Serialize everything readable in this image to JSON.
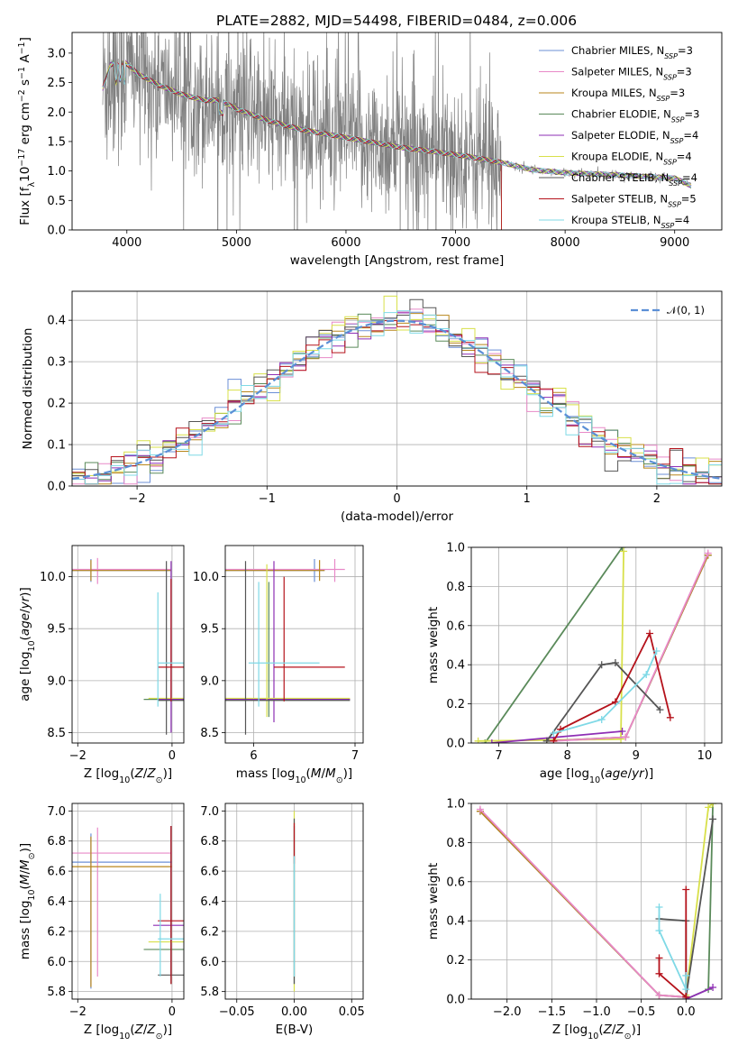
{
  "title": "PLATE=2882, MJD=54498, FIBERID=0484, z=0.006",
  "colors": {
    "Chabrier MILES": "#6b8fd6",
    "Salpeter MILES": "#e889c8",
    "Kroupa MILES": "#b8861b",
    "Chabrier ELODIE": "#5a8a5a",
    "Salpeter ELODIE": "#8e2fb5",
    "Kroupa ELODIE": "#d8e04a",
    "Chabrier STELIB": "#555555",
    "Salpeter STELIB": "#b5121b",
    "Kroupa STELIB": "#7fd9e6",
    "data": "#808080",
    "gauss": "#5b8fd6"
  },
  "chart_data": [
    {
      "id": "spectrum",
      "type": "line",
      "title": "PLATE=2882, MJD=54498, FIBERID=0484, z=0.006",
      "xlabel": "wavelength [Angstrom, rest frame]",
      "ylabel": "Flux [f_λ 10^-17 erg cm^-2 s^-1 A^-1]",
      "xlim": [
        3500,
        9430
      ],
      "ylim": [
        0,
        3.35
      ],
      "xticks": [
        4000,
        5000,
        6000,
        7000,
        8000,
        9000
      ],
      "yticks": [
        0.0,
        0.5,
        1.0,
        1.5,
        2.0,
        2.5,
        3.0
      ],
      "legend_position": "top-right",
      "legend": [
        {
          "label": "Chabrier MILES, N",
          "sub": "SSP",
          "tail": "=3"
        },
        {
          "label": "Salpeter MILES, N",
          "sub": "SSP",
          "tail": "=3"
        },
        {
          "label": "Kroupa MILES, N",
          "sub": "SSP",
          "tail": "=3"
        },
        {
          "label": "Chabrier ELODIE, N",
          "sub": "SSP",
          "tail": "=3"
        },
        {
          "label": "Salpeter ELODIE, N",
          "sub": "SSP",
          "tail": "=4"
        },
        {
          "label": "Kroupa ELODIE, N",
          "sub": "SSP",
          "tail": "=4"
        },
        {
          "label": "Chabrier STELIB, N",
          "sub": "SSP",
          "tail": "=4"
        },
        {
          "label": "Salpeter STELIB, N",
          "sub": "SSP",
          "tail": "=5"
        },
        {
          "label": "Kroupa STELIB, N",
          "sub": "SSP",
          "tail": "=4"
        }
      ],
      "continuum": [
        [
          3780,
          2.4
        ],
        [
          3850,
          2.8
        ],
        [
          3950,
          2.9
        ],
        [
          4100,
          2.65
        ],
        [
          4300,
          2.45
        ],
        [
          4500,
          2.3
        ],
        [
          4700,
          2.2
        ],
        [
          4850,
          2.2
        ],
        [
          5000,
          2.05
        ],
        [
          5300,
          1.85
        ],
        [
          5600,
          1.7
        ],
        [
          5900,
          1.6
        ],
        [
          6200,
          1.5
        ],
        [
          6500,
          1.4
        ],
        [
          6800,
          1.33
        ],
        [
          7100,
          1.25
        ],
        [
          7400,
          1.15
        ],
        [
          7700,
          1.02
        ],
        [
          8000,
          0.97
        ],
        [
          8500,
          0.93
        ],
        [
          9000,
          0.88
        ],
        [
          9150,
          0.75
        ]
      ]
    },
    {
      "id": "residuals",
      "type": "step",
      "xlabel": "(data-model)/error",
      "ylabel": "Normed distribution",
      "xlim": [
        -2.5,
        2.5
      ],
      "ylim": [
        0,
        0.47
      ],
      "xticks": [
        -2,
        -1,
        0,
        1,
        2
      ],
      "yticks": [
        0.0,
        0.1,
        0.2,
        0.3,
        0.4
      ],
      "grid": true,
      "legend_position": "top-right",
      "legend": "𝒩(0, 1)"
    },
    {
      "id": "z-age",
      "type": "errorbar",
      "xlabel": "Z [log10(Z/Z⊙)]",
      "ylabel": "age [log10(age/yr)]",
      "xlim": [
        -2.12,
        0.25
      ],
      "ylim": [
        8.4,
        10.3
      ],
      "xticks": [
        -2,
        0
      ],
      "yticks": [
        8.5,
        9.0,
        9.5,
        10.0
      ],
      "grid": true
    },
    {
      "id": "mass-age",
      "type": "errorbar",
      "xlabel": "mass [log10(M/M⊙)]",
      "xlim": [
        5.72,
        7.08
      ],
      "ylim": [
        8.4,
        10.3
      ],
      "xticks": [
        6,
        7
      ],
      "yticks": [
        8.5,
        9.0,
        9.5,
        10.0
      ],
      "grid": true
    },
    {
      "id": "age-weight",
      "type": "line",
      "xlabel": "age [log10(age/yr)]",
      "ylabel": "mass weight",
      "xlim": [
        6.6,
        10.25
      ],
      "ylim": [
        0,
        1.0
      ],
      "xticks": [
        7,
        8,
        9,
        10
      ],
      "yticks": [
        0.0,
        0.2,
        0.4,
        0.6,
        0.8,
        1.0
      ],
      "grid": true,
      "series": [
        {
          "key": "Chabrier ELODIE",
          "x": [
            6.8,
            8.8
          ],
          "y": [
            0.0,
            1.0
          ]
        },
        {
          "key": "Kroupa ELODIE",
          "x": [
            6.7,
            8.78,
            8.82
          ],
          "y": [
            0.01,
            0.02,
            0.98
          ]
        },
        {
          "key": "Chabrier MILES",
          "x": [
            7.7,
            8.85,
            10.05
          ],
          "y": [
            0.01,
            0.03,
            0.96
          ]
        },
        {
          "key": "Kroupa MILES",
          "x": [
            7.7,
            8.85,
            10.05
          ],
          "y": [
            0.01,
            0.03,
            0.96
          ]
        },
        {
          "key": "Salpeter MILES",
          "x": [
            7.8,
            8.85,
            10.05
          ],
          "y": [
            0.01,
            0.03,
            0.97
          ]
        },
        {
          "key": "Salpeter ELODIE",
          "x": [
            6.9,
            8.8
          ],
          "y": [
            0.0,
            0.06
          ]
        },
        {
          "key": "Chabrier STELIB",
          "x": [
            7.7,
            8.5,
            8.7,
            9.35
          ],
          "y": [
            0.01,
            0.4,
            0.41,
            0.17
          ]
        },
        {
          "key": "Salpeter STELIB",
          "x": [
            7.8,
            7.9,
            8.7,
            9.2,
            9.5
          ],
          "y": [
            0.01,
            0.07,
            0.21,
            0.56,
            0.13
          ]
        },
        {
          "key": "Kroupa STELIB",
          "x": [
            7.8,
            8.5,
            9.15,
            9.3
          ],
          "y": [
            0.05,
            0.12,
            0.35,
            0.47
          ]
        }
      ]
    },
    {
      "id": "z-mass",
      "type": "errorbar",
      "xlabel": "Z [log10(Z/Z⊙)]",
      "ylabel": "mass [log10(M/M⊙)]",
      "xlim": [
        -2.12,
        0.25
      ],
      "ylim": [
        5.75,
        7.05
      ],
      "xticks": [
        -2,
        0
      ],
      "yticks": [
        5.8,
        6.0,
        6.2,
        6.4,
        6.6,
        6.8,
        7.0
      ],
      "grid": true
    },
    {
      "id": "ebv-mass",
      "type": "errorbar",
      "xlabel": "E(B-V)",
      "xlim": [
        -0.06,
        0.06
      ],
      "ylim": [
        5.75,
        7.05
      ],
      "xticks": [
        -0.05,
        0.0,
        0.05
      ],
      "yticks": [
        5.8,
        6.0,
        6.2,
        6.4,
        6.6,
        6.8,
        7.0
      ],
      "grid": true
    },
    {
      "id": "z-weight",
      "type": "line",
      "xlabel": "Z [log10(Z/Z⊙)]",
      "ylabel": "mass weight",
      "xlim": [
        -2.4,
        0.4
      ],
      "ylim": [
        0,
        1.0
      ],
      "xticks": [
        -2.0,
        -1.5,
        -1.0,
        -0.5,
        0.0
      ],
      "yticks": [
        0.0,
        0.2,
        0.4,
        0.6,
        0.8,
        1.0
      ],
      "grid": true,
      "series": [
        {
          "key": "Chabrier MILES",
          "x": [
            -2.3,
            -0.3,
            0.0
          ],
          "y": [
            0.96,
            0.02,
            0.01
          ]
        },
        {
          "key": "Kroupa MILES",
          "x": [
            -2.3,
            -0.3,
            0.0
          ],
          "y": [
            0.96,
            0.02,
            0.01
          ]
        },
        {
          "key": "Salpeter MILES",
          "x": [
            -2.3,
            -0.3,
            0.0
          ],
          "y": [
            0.97,
            0.02,
            0.01
          ]
        },
        {
          "key": "Chabrier ELODIE",
          "x": [
            0.0,
            0.25,
            0.3
          ],
          "y": [
            0.0,
            0.05,
            1.0
          ]
        },
        {
          "key": "Kroupa ELODIE",
          "x": [
            0.0,
            0.25,
            0.3
          ],
          "y": [
            0.02,
            0.98,
            1.0
          ]
        },
        {
          "key": "Salpeter ELODIE",
          "x": [
            0.0,
            0.3
          ],
          "y": [
            0.0,
            0.06
          ]
        },
        {
          "key": "Chabrier STELIB",
          "x": [
            -0.3,
            0.0,
            0.0,
            0.3
          ],
          "y": [
            0.41,
            0.4,
            0.01,
            0.92
          ]
        },
        {
          "key": "Salpeter STELIB",
          "x": [
            -0.3,
            -0.3,
            0.0,
            0.0
          ],
          "y": [
            0.21,
            0.13,
            0.01,
            0.56
          ]
        },
        {
          "key": "Kroupa STELIB",
          "x": [
            -0.3,
            -0.3,
            0.0,
            0.0
          ],
          "y": [
            0.47,
            0.35,
            0.05,
            0.12
          ]
        }
      ]
    }
  ]
}
